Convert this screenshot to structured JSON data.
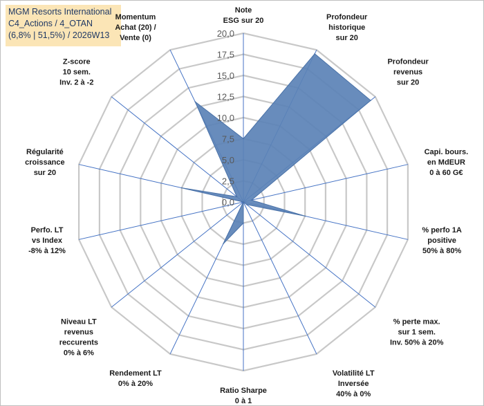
{
  "info_box": {
    "line1": "MGM Resorts International",
    "line2": "C4_Actions / 4_OTAN",
    "line3": "(6,8% | 51,5%) / 2026W13"
  },
  "colors": {
    "series_fill": "#5b82b6",
    "series_stroke": "#4a72a8",
    "grid": "#c8c8c8",
    "spoke": "#4472c4"
  },
  "chart_data": {
    "type": "radar",
    "axes": [
      [
        "Note",
        "ESG sur 20"
      ],
      [
        "Profondeur",
        "historique",
        "sur 20"
      ],
      [
        "Profondeur",
        "revenus",
        "sur 20"
      ],
      [
        "Capi. bours.",
        "en MdEUR",
        "0 à 60 G€"
      ],
      [
        "% perfo 1A",
        "positive",
        "50% à 80%"
      ],
      [
        "% perte max.",
        "sur 1 sem.",
        "Inv. 50% à 20%"
      ],
      [
        "Volatilité LT",
        "Inversée",
        "40% à 0%"
      ],
      [
        "Ratio Sharpe",
        "0 à 1"
      ],
      [
        "Rendement LT",
        "0% à 20%"
      ],
      [
        "Niveau LT",
        "revenus",
        "reccurents",
        "0% à 6%"
      ],
      [
        "Perfo. LT",
        "vs Index",
        "-8% à 12%"
      ],
      [
        "Régularité",
        "croissance",
        "sur 20"
      ],
      [
        "Z-score",
        "10 sem.",
        "Inv. 2 à -2"
      ],
      [
        "Momentum",
        "Achat (20) /",
        "Vente (0)"
      ]
    ],
    "ticks": [
      "0,0",
      "2,5",
      "5,0",
      "7,5",
      "10,0",
      "12,5",
      "15,0",
      "17,5",
      "20,0"
    ],
    "rmin": 0,
    "rmax": 20,
    "series": [
      {
        "values": [
          7.5,
          19.5,
          19.3,
          1.0,
          7.5,
          0.5,
          0.0,
          2.5,
          5.5,
          0.0,
          0.0,
          7.5,
          1.0,
          13.2
        ]
      }
    ],
    "grid": true
  }
}
